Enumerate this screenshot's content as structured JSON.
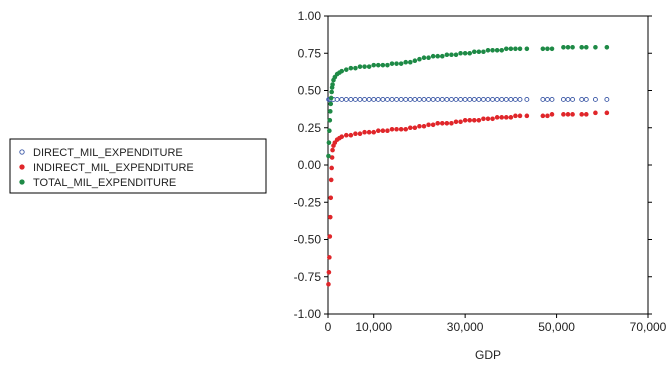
{
  "chart_data": {
    "type": "scatter",
    "xlabel": "GDP",
    "ylabel": "",
    "xlim": [
      0,
      70000
    ],
    "ylim": [
      -1.0,
      1.0
    ],
    "x_ticks": [
      0,
      10000,
      30000,
      50000,
      70000
    ],
    "x_tick_labels": [
      "0",
      "10,000",
      "30,000",
      "50,000",
      "70,000"
    ],
    "y_ticks": [
      -1.0,
      -0.75,
      -0.5,
      -0.25,
      0.0,
      0.25,
      0.5,
      0.75,
      1.0
    ],
    "y_tick_labels": [
      "-1.00",
      "-0.75",
      "-0.50",
      "-0.25",
      "0.00",
      "0.25",
      "0.50",
      "0.75",
      "1.00"
    ],
    "grid": false,
    "legend_position": "left",
    "series": [
      {
        "name": "DIRECT_MIL_EXPENDITURE",
        "color": "#3a57a6",
        "marker": "hollow-circle",
        "points": [
          [
            150,
            0.44
          ],
          [
            300,
            0.44
          ],
          [
            500,
            0.44
          ],
          [
            800,
            0.44
          ],
          [
            1200,
            0.44
          ],
          [
            2000,
            0.44
          ],
          [
            3000,
            0.44
          ],
          [
            4000,
            0.44
          ],
          [
            5000,
            0.44
          ],
          [
            6000,
            0.44
          ],
          [
            7000,
            0.44
          ],
          [
            8000,
            0.44
          ],
          [
            9000,
            0.44
          ],
          [
            10000,
            0.44
          ],
          [
            11000,
            0.44
          ],
          [
            12000,
            0.44
          ],
          [
            13000,
            0.44
          ],
          [
            14000,
            0.44
          ],
          [
            15000,
            0.44
          ],
          [
            16000,
            0.44
          ],
          [
            17000,
            0.44
          ],
          [
            18000,
            0.44
          ],
          [
            19000,
            0.44
          ],
          [
            20000,
            0.44
          ],
          [
            21000,
            0.44
          ],
          [
            22000,
            0.44
          ],
          [
            23000,
            0.44
          ],
          [
            24000,
            0.44
          ],
          [
            25000,
            0.44
          ],
          [
            26000,
            0.44
          ],
          [
            27000,
            0.44
          ],
          [
            28000,
            0.44
          ],
          [
            29000,
            0.44
          ],
          [
            30000,
            0.44
          ],
          [
            31000,
            0.44
          ],
          [
            32000,
            0.44
          ],
          [
            33000,
            0.44
          ],
          [
            34000,
            0.44
          ],
          [
            35000,
            0.44
          ],
          [
            36000,
            0.44
          ],
          [
            37000,
            0.44
          ],
          [
            38000,
            0.44
          ],
          [
            39000,
            0.44
          ],
          [
            40000,
            0.44
          ],
          [
            41000,
            0.44
          ],
          [
            42000,
            0.44
          ],
          [
            43500,
            0.44
          ],
          [
            47000,
            0.44
          ],
          [
            48000,
            0.44
          ],
          [
            49000,
            0.44
          ],
          [
            51500,
            0.44
          ],
          [
            52500,
            0.44
          ],
          [
            53500,
            0.44
          ],
          [
            55500,
            0.44
          ],
          [
            56500,
            0.44
          ],
          [
            58500,
            0.44
          ],
          [
            61000,
            0.44
          ]
        ]
      },
      {
        "name": "INDIRECT_MIL_EXPENDITURE",
        "color": "#e0262a",
        "marker": "filled-circle",
        "points": [
          [
            100,
            -0.8
          ],
          [
            200,
            -0.72
          ],
          [
            300,
            -0.62
          ],
          [
            400,
            -0.48
          ],
          [
            500,
            -0.35
          ],
          [
            600,
            -0.22
          ],
          [
            700,
            -0.1
          ],
          [
            800,
            -0.02
          ],
          [
            900,
            0.05
          ],
          [
            1000,
            0.1
          ],
          [
            1200,
            0.13
          ],
          [
            1500,
            0.15
          ],
          [
            2000,
            0.17
          ],
          [
            2500,
            0.18
          ],
          [
            3000,
            0.19
          ],
          [
            4000,
            0.2
          ],
          [
            5000,
            0.2
          ],
          [
            6000,
            0.21
          ],
          [
            7000,
            0.21
          ],
          [
            8000,
            0.22
          ],
          [
            9000,
            0.22
          ],
          [
            10000,
            0.22
          ],
          [
            11000,
            0.23
          ],
          [
            12000,
            0.23
          ],
          [
            13000,
            0.23
          ],
          [
            14000,
            0.24
          ],
          [
            15000,
            0.24
          ],
          [
            16000,
            0.24
          ],
          [
            17000,
            0.24
          ],
          [
            18000,
            0.25
          ],
          [
            19000,
            0.25
          ],
          [
            20000,
            0.26
          ],
          [
            21000,
            0.26
          ],
          [
            22000,
            0.27
          ],
          [
            23000,
            0.27
          ],
          [
            24000,
            0.28
          ],
          [
            25000,
            0.28
          ],
          [
            26000,
            0.28
          ],
          [
            27000,
            0.28
          ],
          [
            28000,
            0.29
          ],
          [
            29000,
            0.29
          ],
          [
            30000,
            0.3
          ],
          [
            31000,
            0.3
          ],
          [
            32000,
            0.3
          ],
          [
            33000,
            0.3
          ],
          [
            34000,
            0.31
          ],
          [
            35000,
            0.31
          ],
          [
            36000,
            0.31
          ],
          [
            37000,
            0.32
          ],
          [
            38000,
            0.32
          ],
          [
            39000,
            0.32
          ],
          [
            40000,
            0.32
          ],
          [
            41000,
            0.33
          ],
          [
            42000,
            0.33
          ],
          [
            43500,
            0.33
          ],
          [
            47000,
            0.33
          ],
          [
            48000,
            0.33
          ],
          [
            49000,
            0.34
          ],
          [
            51500,
            0.34
          ],
          [
            52500,
            0.34
          ],
          [
            53500,
            0.34
          ],
          [
            55500,
            0.34
          ],
          [
            56500,
            0.34
          ],
          [
            58500,
            0.35
          ],
          [
            61000,
            0.35
          ]
        ]
      },
      {
        "name": "TOTAL_MIL_EXPENDITURE",
        "color": "#1e8a46",
        "marker": "filled-circle",
        "points": [
          [
            100,
            0.06
          ],
          [
            200,
            0.15
          ],
          [
            300,
            0.23
          ],
          [
            400,
            0.3
          ],
          [
            500,
            0.36
          ],
          [
            600,
            0.41
          ],
          [
            700,
            0.45
          ],
          [
            800,
            0.49
          ],
          [
            900,
            0.52
          ],
          [
            1000,
            0.54
          ],
          [
            1200,
            0.57
          ],
          [
            1500,
            0.59
          ],
          [
            2000,
            0.61
          ],
          [
            2500,
            0.62
          ],
          [
            3000,
            0.63
          ],
          [
            4000,
            0.64
          ],
          [
            5000,
            0.65
          ],
          [
            6000,
            0.65
          ],
          [
            7000,
            0.66
          ],
          [
            8000,
            0.66
          ],
          [
            9000,
            0.66
          ],
          [
            10000,
            0.67
          ],
          [
            11000,
            0.67
          ],
          [
            12000,
            0.67
          ],
          [
            13000,
            0.67
          ],
          [
            14000,
            0.68
          ],
          [
            15000,
            0.68
          ],
          [
            16000,
            0.68
          ],
          [
            17000,
            0.69
          ],
          [
            18000,
            0.69
          ],
          [
            19000,
            0.7
          ],
          [
            20000,
            0.71
          ],
          [
            21000,
            0.72
          ],
          [
            22000,
            0.72
          ],
          [
            23000,
            0.73
          ],
          [
            24000,
            0.73
          ],
          [
            25000,
            0.73
          ],
          [
            26000,
            0.74
          ],
          [
            27000,
            0.74
          ],
          [
            28000,
            0.74
          ],
          [
            29000,
            0.75
          ],
          [
            30000,
            0.75
          ],
          [
            31000,
            0.75
          ],
          [
            32000,
            0.76
          ],
          [
            33000,
            0.76
          ],
          [
            34000,
            0.76
          ],
          [
            35000,
            0.77
          ],
          [
            36000,
            0.77
          ],
          [
            37000,
            0.77
          ],
          [
            38000,
            0.77
          ],
          [
            39000,
            0.78
          ],
          [
            40000,
            0.78
          ],
          [
            41000,
            0.78
          ],
          [
            42000,
            0.78
          ],
          [
            43500,
            0.78
          ],
          [
            47000,
            0.78
          ],
          [
            48000,
            0.78
          ],
          [
            49000,
            0.78
          ],
          [
            51500,
            0.79
          ],
          [
            52500,
            0.79
          ],
          [
            53500,
            0.79
          ],
          [
            55500,
            0.79
          ],
          [
            56500,
            0.79
          ],
          [
            58500,
            0.79
          ],
          [
            61000,
            0.79
          ]
        ]
      }
    ]
  }
}
